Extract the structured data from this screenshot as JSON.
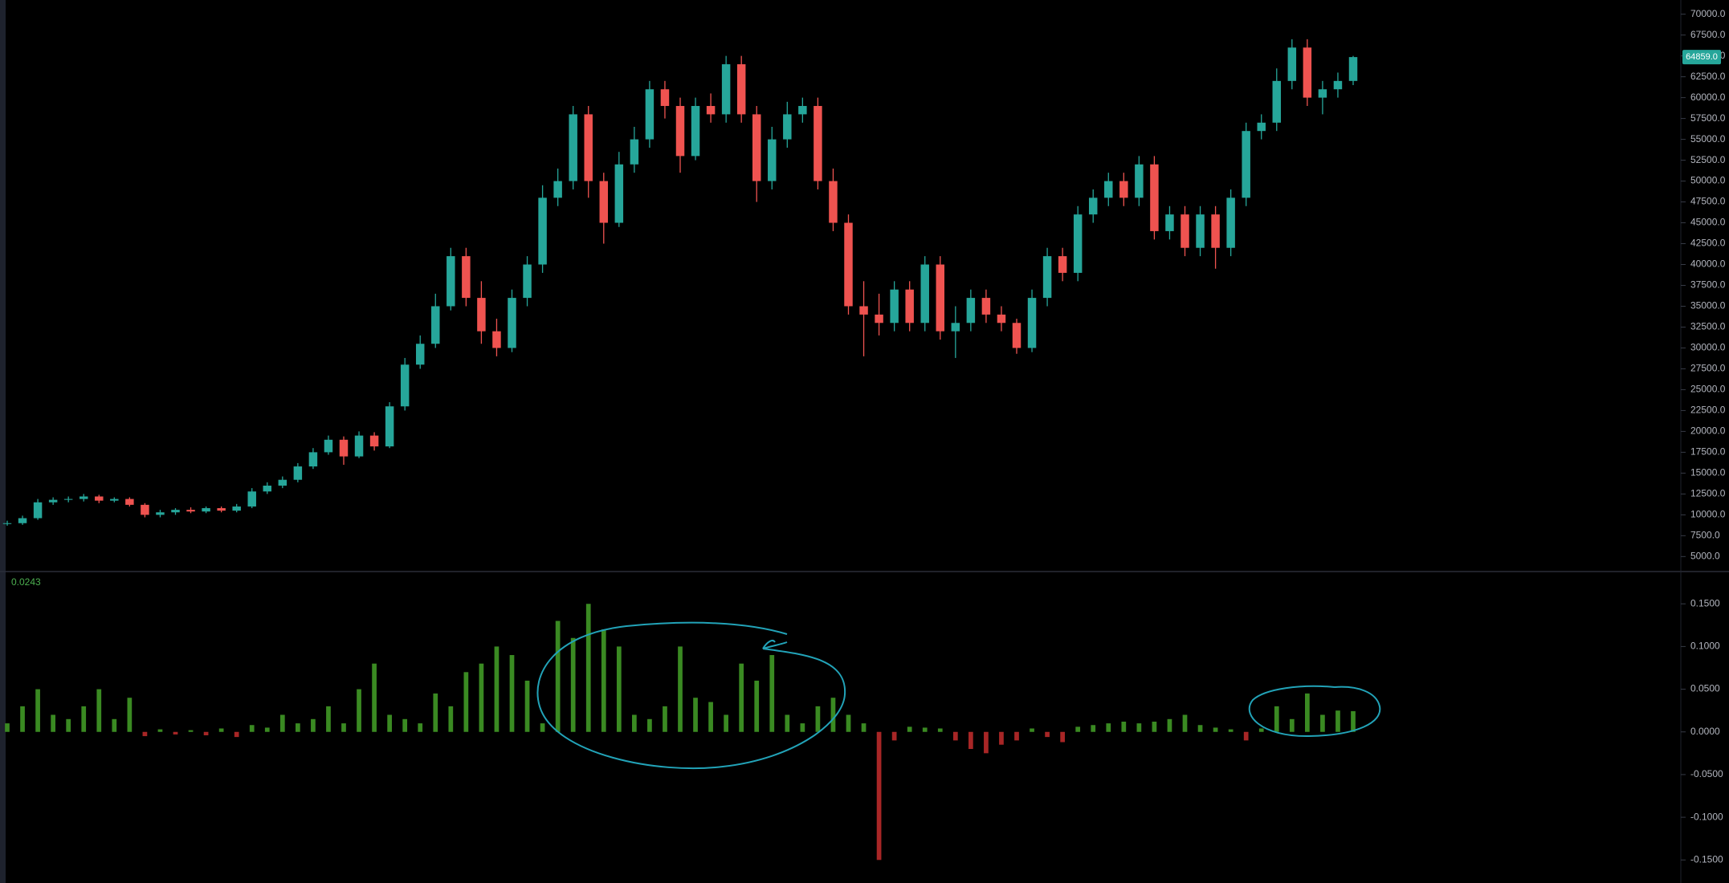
{
  "chart_data": [
    {
      "type": "candlestick",
      "up_color": "#26a69a",
      "down_color": "#ef5350",
      "open": [
        8900,
        9000,
        9600,
        11500,
        11800,
        11900,
        12200,
        11700,
        11900,
        11200,
        10000,
        10300,
        10600,
        10400,
        10800,
        10500,
        11000,
        12800,
        13500,
        14200,
        15800,
        17500,
        19000,
        17000,
        19500,
        18200,
        23000,
        28000,
        30500,
        35000,
        41000,
        36000,
        32000,
        30000,
        36000,
        40000,
        48000,
        50000,
        58000,
        50000,
        45000,
        52000,
        55000,
        61000,
        59000,
        53000,
        59000,
        58000,
        64000,
        58000,
        50000,
        55000,
        58000,
        59000,
        50000,
        45000,
        35000,
        34000,
        33000,
        37000,
        33000,
        40000,
        32000,
        33000,
        36000,
        34000,
        33000,
        30000,
        36000,
        41000,
        39000,
        46000,
        48000,
        50000,
        48000,
        52000,
        44000,
        46000,
        42000,
        46000,
        42000,
        48000,
        56000,
        57000,
        62000,
        66000,
        60000,
        61000,
        62000
      ],
      "high": [
        9300,
        9900,
        11900,
        12100,
        12200,
        12500,
        12400,
        12100,
        12100,
        11400,
        10600,
        10800,
        10900,
        11000,
        11000,
        11300,
        13200,
        13900,
        14600,
        16200,
        18000,
        19500,
        19400,
        20000,
        19900,
        23500,
        28800,
        31500,
        36500,
        42000,
        42000,
        38000,
        33500,
        37000,
        41000,
        49500,
        51500,
        59000,
        59000,
        51000,
        53500,
        56500,
        62000,
        62000,
        60000,
        60000,
        60500,
        65000,
        65000,
        59000,
        56500,
        59500,
        60000,
        60000,
        51500,
        46000,
        38000,
        36500,
        38000,
        38000,
        41000,
        41000,
        35000,
        37000,
        37000,
        35000,
        33500,
        37000,
        42000,
        42000,
        47000,
        49000,
        51000,
        51000,
        53000,
        53000,
        47000,
        47000,
        47000,
        47000,
        49000,
        57000,
        58000,
        63500,
        67000,
        67000,
        62000,
        63000,
        65000
      ],
      "low": [
        8700,
        8800,
        9400,
        11200,
        11500,
        11600,
        11400,
        11500,
        11000,
        9700,
        9700,
        10000,
        10200,
        10200,
        10300,
        10300,
        10800,
        12500,
        13200,
        13900,
        15500,
        17200,
        16000,
        16800,
        17700,
        18000,
        22500,
        27500,
        30000,
        34500,
        35000,
        30500,
        29000,
        29500,
        35000,
        39000,
        47000,
        49000,
        48000,
        42500,
        44500,
        51000,
        54000,
        57500,
        51000,
        52500,
        57000,
        57000,
        57000,
        47500,
        49000,
        54000,
        57000,
        49000,
        44000,
        34000,
        29000,
        31500,
        32000,
        32000,
        32000,
        31000,
        28800,
        32000,
        33000,
        32000,
        29300,
        29500,
        35000,
        38000,
        38000,
        45000,
        47000,
        47000,
        47000,
        43000,
        43000,
        41000,
        41000,
        39500,
        41000,
        47000,
        55000,
        56000,
        61000,
        59000,
        58000,
        60000,
        61500
      ],
      "close": [
        9000,
        9600,
        11500,
        11800,
        11900,
        12200,
        11700,
        11900,
        11200,
        10000,
        10300,
        10600,
        10400,
        10800,
        10500,
        11000,
        12800,
        13500,
        14200,
        15800,
        17500,
        19000,
        17000,
        19500,
        18200,
        23000,
        28000,
        30500,
        35000,
        41000,
        36000,
        32000,
        30000,
        36000,
        40000,
        48000,
        50000,
        58000,
        50000,
        45000,
        52000,
        55000,
        61000,
        59000,
        53000,
        59000,
        58000,
        64000,
        58000,
        50000,
        55000,
        58000,
        59000,
        50000,
        45000,
        35000,
        34000,
        33000,
        37000,
        33000,
        40000,
        32000,
        33000,
        36000,
        34000,
        33000,
        30000,
        36000,
        41000,
        39000,
        46000,
        48000,
        50000,
        48000,
        52000,
        44000,
        46000,
        42000,
        46000,
        42000,
        48000,
        56000,
        57000,
        62000,
        66000,
        60000,
        61000,
        62000,
        64859
      ],
      "ylim": [
        3300,
        71700
      ],
      "yticks": [
        {
          "value": 5000,
          "label": "5000.0"
        },
        {
          "value": 7500,
          "label": "7500.0"
        },
        {
          "value": 10000,
          "label": "10000.0"
        },
        {
          "value": 12500,
          "label": "12500.0"
        },
        {
          "value": 15000,
          "label": "15000.0"
        },
        {
          "value": 17500,
          "label": "17500.0"
        },
        {
          "value": 20000,
          "label": "20000.0"
        },
        {
          "value": 22500,
          "label": "22500.0"
        },
        {
          "value": 25000,
          "label": "25000.0"
        },
        {
          "value": 27500,
          "label": "27500.0"
        },
        {
          "value": 30000,
          "label": "30000.0"
        },
        {
          "value": 32500,
          "label": "32500.0"
        },
        {
          "value": 35000,
          "label": "35000.0"
        },
        {
          "value": 37500,
          "label": "37500.0"
        },
        {
          "value": 40000,
          "label": "40000.0"
        },
        {
          "value": 42500,
          "label": "42500.0"
        },
        {
          "value": 45000,
          "label": "45000.0"
        },
        {
          "value": 47500,
          "label": "47500.0"
        },
        {
          "value": 50000,
          "label": "50000.0"
        },
        {
          "value": 52500,
          "label": "52500.0"
        },
        {
          "value": 55000,
          "label": "55000.0"
        },
        {
          "value": 57500,
          "label": "57500.0"
        },
        {
          "value": 60000,
          "label": "60000.0"
        },
        {
          "value": 62500,
          "label": "62500.0"
        },
        {
          "value": 65000,
          "label": "65000.0"
        },
        {
          "value": 67500,
          "label": "67500.0"
        },
        {
          "value": 70000,
          "label": "70000.0"
        }
      ],
      "last_price": {
        "value": 64859,
        "label": "64859.0"
      }
    },
    {
      "type": "histogram",
      "up_color": "#3a8a22",
      "down_color": "#a82626",
      "current_value": 0.0243,
      "values": [
        0.01,
        0.03,
        0.05,
        0.02,
        0.015,
        0.03,
        0.05,
        0.015,
        0.04,
        -0.005,
        0.003,
        -0.003,
        0.002,
        -0.004,
        0.004,
        -0.006,
        0.008,
        0.005,
        0.02,
        0.01,
        0.015,
        0.03,
        0.01,
        0.05,
        0.08,
        0.02,
        0.015,
        0.01,
        0.045,
        0.03,
        0.07,
        0.08,
        0.1,
        0.09,
        0.06,
        0.01,
        0.13,
        0.11,
        0.15,
        0.12,
        0.1,
        0.02,
        0.015,
        0.03,
        0.1,
        0.04,
        0.035,
        0.02,
        0.08,
        0.06,
        0.09,
        0.02,
        0.01,
        0.03,
        0.04,
        0.02,
        0.01,
        -0.15,
        -0.01,
        0.006,
        0.005,
        0.004,
        -0.01,
        -0.02,
        -0.025,
        -0.015,
        -0.01,
        0.004,
        -0.006,
        -0.012,
        0.006,
        0.008,
        0.01,
        0.012,
        0.01,
        0.012,
        0.015,
        0.02,
        0.008,
        0.005,
        0.003,
        -0.01,
        0.004,
        0.03,
        0.015,
        0.045,
        0.02,
        0.025,
        0.0243
      ],
      "ylim": [
        -0.177,
        0.185
      ],
      "yticks": [
        {
          "value": 0.15,
          "label": "0.1500"
        },
        {
          "value": 0.1,
          "label": "0.1000"
        },
        {
          "value": 0.05,
          "label": "0.0500"
        },
        {
          "value": 0,
          "label": "0.0000"
        },
        {
          "value": -0.05,
          "label": "-0.0500"
        },
        {
          "value": -0.1,
          "label": "-0.1000"
        },
        {
          "value": -0.15,
          "label": "-0.1500"
        }
      ]
    }
  ]
}
